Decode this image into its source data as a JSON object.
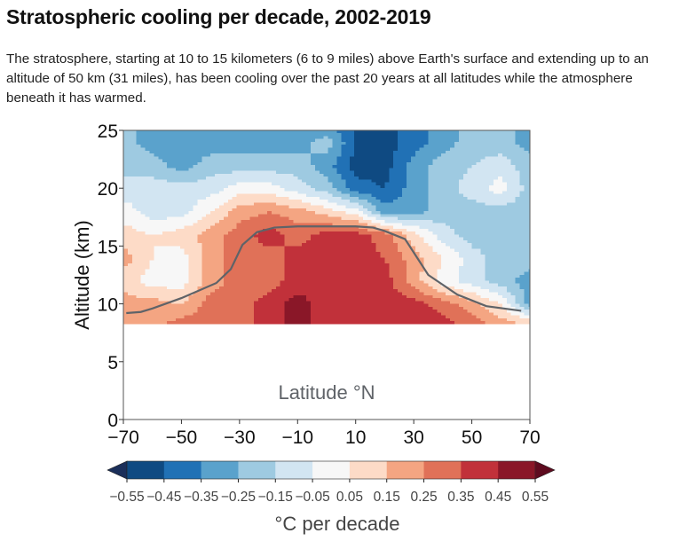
{
  "header": {
    "title": "Stratospheric cooling per decade, 2002-2019",
    "description": "The stratosphere, starting at 10 to 15 kilometers (6 to 9 miles) above Earth's surface and extending up to an altitude of 50 km (31 miles), has been cooling over the past 20 years at all latitudes while the atmosphere beneath it has warmed."
  },
  "chart_data": {
    "type": "heatmap",
    "title": "",
    "xlabel": "Latitude °N",
    "ylabel": "Altitude (km)",
    "xlim": [
      -70,
      70
    ],
    "ylim": [
      0,
      25
    ],
    "xticks": [
      "−70",
      "−50",
      "−30",
      "−10",
      "10",
      "30",
      "50",
      "70"
    ],
    "xtick_values": [
      -70,
      -50,
      -30,
      -10,
      10,
      30,
      50,
      70
    ],
    "yticks": [
      "0",
      "5",
      "10",
      "15",
      "20",
      "25"
    ],
    "ytick_values": [
      0,
      5,
      10,
      15,
      20,
      25
    ],
    "field": {
      "latitudes": [
        -70,
        -60,
        -50,
        -40,
        -30,
        -20,
        -10,
        0,
        10,
        20,
        30,
        40,
        50,
        60,
        70
      ],
      "altitudes": [
        8.3,
        10,
        12,
        14,
        16,
        18,
        20,
        22,
        24,
        25
      ],
      "values_degC_per_decade": [
        [
          0.2,
          0.2,
          0.3,
          0.3,
          0.3,
          0.4,
          0.5,
          0.4,
          0.4,
          0.4,
          0.45,
          0.4,
          0.3,
          0.2,
          0.15
        ],
        [
          0.2,
          0.2,
          0.15,
          0.3,
          0.3,
          0.4,
          0.5,
          0.4,
          0.4,
          0.4,
          0.4,
          0.3,
          0.2,
          0.05,
          -0.3
        ],
        [
          0.1,
          0.0,
          0.0,
          0.2,
          0.3,
          0.3,
          0.4,
          0.4,
          0.4,
          0.4,
          0.2,
          0.0,
          -0.1,
          -0.2,
          -0.3
        ],
        [
          0.2,
          0.05,
          0.0,
          0.2,
          0.3,
          0.3,
          0.4,
          0.4,
          0.4,
          0.35,
          0.2,
          0.05,
          -0.1,
          -0.2,
          -0.2
        ],
        [
          0.1,
          0.05,
          0.1,
          0.2,
          0.3,
          0.4,
          0.3,
          0.4,
          0.4,
          0.3,
          0.1,
          -0.1,
          -0.2,
          -0.2,
          -0.2
        ],
        [
          0.0,
          -0.1,
          -0.1,
          0.05,
          0.2,
          0.25,
          0.2,
          0.1,
          0.0,
          -0.3,
          -0.3,
          -0.2,
          -0.2,
          -0.2,
          -0.2
        ],
        [
          -0.1,
          -0.1,
          -0.1,
          -0.1,
          0.0,
          0.0,
          -0.1,
          -0.2,
          -0.4,
          -0.45,
          -0.3,
          -0.2,
          -0.1,
          0.0,
          -0.2
        ],
        [
          -0.2,
          -0.2,
          -0.3,
          -0.2,
          -0.2,
          -0.2,
          -0.2,
          -0.3,
          -0.5,
          -0.5,
          -0.3,
          -0.2,
          -0.15,
          -0.1,
          -0.2
        ],
        [
          -0.2,
          -0.3,
          -0.3,
          -0.3,
          -0.3,
          -0.3,
          -0.3,
          -0.2,
          -0.45,
          -0.5,
          -0.4,
          -0.3,
          -0.2,
          -0.2,
          -0.3
        ],
        [
          -0.2,
          -0.3,
          -0.35,
          -0.3,
          -0.3,
          -0.3,
          -0.3,
          -0.3,
          -0.45,
          -0.5,
          -0.4,
          -0.3,
          -0.2,
          -0.2,
          -0.3
        ]
      ]
    },
    "tropopause_line": {
      "color": "#5f6368",
      "points": [
        [
          -69,
          9.2
        ],
        [
          -64,
          9.3
        ],
        [
          -60,
          9.6
        ],
        [
          -50,
          10.5
        ],
        [
          -38,
          11.8
        ],
        [
          -33,
          13
        ],
        [
          -29,
          15.1
        ],
        [
          -24,
          16.2
        ],
        [
          -18,
          16.6
        ],
        [
          -10,
          16.7
        ],
        [
          10,
          16.7
        ],
        [
          16,
          16.6
        ],
        [
          20,
          16.3
        ],
        [
          27,
          15.6
        ],
        [
          35,
          12.5
        ],
        [
          45,
          10.8
        ],
        [
          55,
          9.8
        ],
        [
          67,
          9.4
        ]
      ]
    },
    "colorbar": {
      "label": "°C per decade",
      "levels": [
        -0.55,
        -0.45,
        -0.35,
        -0.25,
        -0.15,
        -0.05,
        0.05,
        0.15,
        0.25,
        0.35,
        0.45,
        0.55
      ],
      "tick_labels": [
        "−0.55",
        "−0.45",
        "−0.35",
        "−0.25",
        "−0.15",
        "−0.05",
        "0.05",
        "0.15",
        "0.25",
        "0.35",
        "0.45",
        "0.55"
      ],
      "colors": [
        "#0f4a82",
        "#2171b5",
        "#5aa2cc",
        "#9ecae1",
        "#d2e5f2",
        "#f7f7f7",
        "#fddbc7",
        "#f4a582",
        "#e07158",
        "#c1313a",
        "#8a1728"
      ],
      "under_color": "#1b2f5a",
      "over_color": "#5e0b1f",
      "extend": "both"
    }
  }
}
